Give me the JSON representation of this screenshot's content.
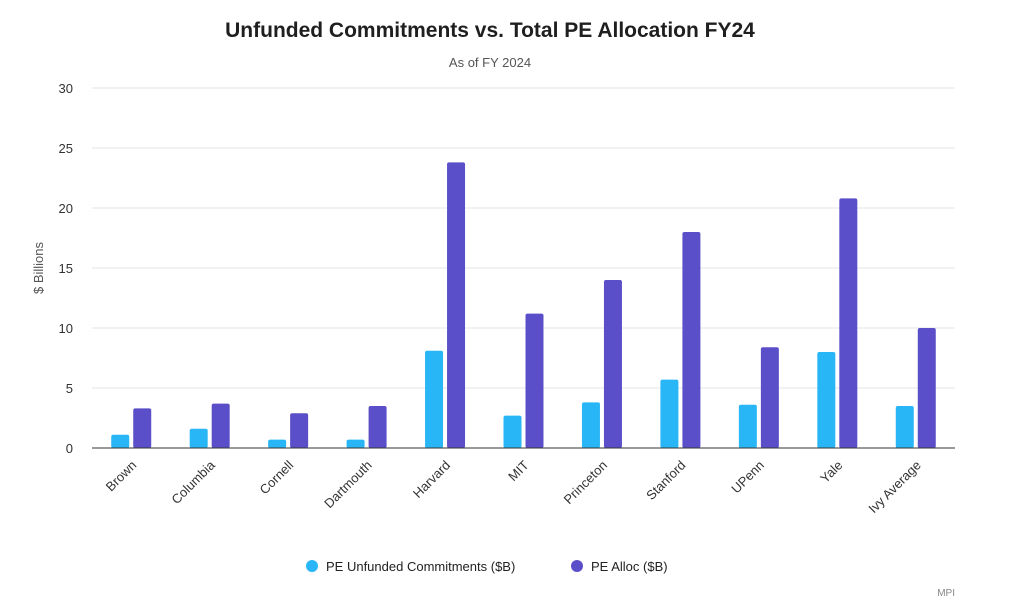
{
  "chart_data": {
    "type": "bar",
    "title": "Unfunded Commitments vs. Total PE Allocation FY24",
    "subtitle": "As of FY 2024",
    "xlabel": "",
    "ylabel": "$ Billions",
    "ylim": [
      0,
      30
    ],
    "yticks": [
      0,
      5,
      10,
      15,
      20,
      25,
      30
    ],
    "grid": true,
    "legend_position": "bottom",
    "categories": [
      "Brown",
      "Columbia",
      "Cornell",
      "Dartmouth",
      "Harvard",
      "MIT",
      "Princeton",
      "Stanford",
      "UPenn",
      "Yale",
      "Ivy Average"
    ],
    "series": [
      {
        "name": "PE Unfunded Commitments ($B)",
        "color": "#29b6f6",
        "values": [
          1.1,
          1.6,
          0.7,
          0.7,
          8.1,
          2.7,
          3.8,
          5.7,
          3.6,
          8.0,
          3.5
        ]
      },
      {
        "name": "PE Alloc ($B)",
        "color": "#5b4fc9",
        "values": [
          3.3,
          3.7,
          2.9,
          3.5,
          23.8,
          11.2,
          14.0,
          18.0,
          8.4,
          20.8,
          10.0
        ]
      }
    ],
    "credit": "MPI"
  }
}
